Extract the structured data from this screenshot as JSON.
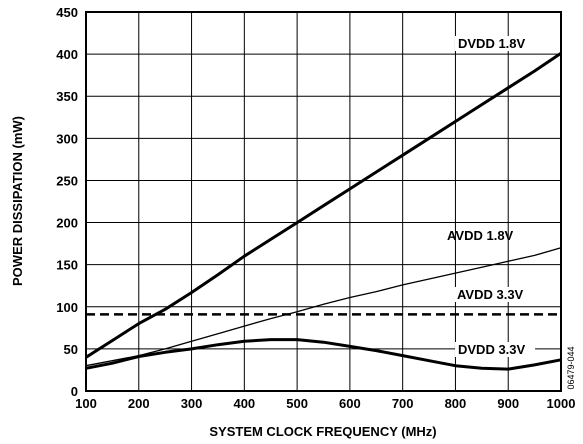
{
  "chart_data": {
    "type": "line",
    "title": "",
    "xlabel": "SYSTEM CLOCK FREQUENCY (MHz)",
    "ylabel": "POWER DISSIPATION (mW)",
    "xlim": [
      100,
      1000
    ],
    "ylim": [
      0,
      450
    ],
    "x_ticks": [
      100,
      200,
      300,
      400,
      500,
      600,
      700,
      800,
      900,
      1000
    ],
    "y_ticks": [
      0,
      50,
      100,
      150,
      200,
      250,
      300,
      350,
      400,
      450
    ],
    "grid": true,
    "legend": "inline labels at right end of lines",
    "figure_id": "06479-044",
    "series": [
      {
        "name": "DVDD 1.8V",
        "style": "thick-solid",
        "x": [
          100,
          150,
          200,
          250,
          300,
          350,
          400,
          450,
          500,
          550,
          600,
          650,
          700,
          750,
          800,
          850,
          900,
          950,
          1000
        ],
        "y": [
          40,
          60,
          80,
          97,
          117,
          138,
          160,
          180,
          200,
          220,
          240,
          260,
          280,
          300,
          320,
          340,
          360,
          380,
          401
        ]
      },
      {
        "name": "AVDD 1.8V",
        "style": "thin-solid",
        "x": [
          100,
          150,
          200,
          250,
          300,
          350,
          400,
          450,
          500,
          550,
          600,
          650,
          700,
          750,
          800,
          850,
          900,
          950,
          1000
        ],
        "y": [
          30,
          36,
          42,
          50,
          59,
          68,
          77,
          86,
          94,
          103,
          111,
          118,
          126,
          133,
          140,
          147,
          154,
          161,
          170
        ]
      },
      {
        "name": "AVDD 3.3V",
        "style": "thick-dashed",
        "x": [
          100,
          1000
        ],
        "y": [
          91,
          91
        ]
      },
      {
        "name": "DVDD 3.3V",
        "style": "thick-solid",
        "x": [
          100,
          150,
          200,
          250,
          300,
          350,
          400,
          450,
          500,
          550,
          600,
          650,
          700,
          750,
          800,
          850,
          900,
          950,
          1000
        ],
        "y": [
          27,
          33,
          41,
          46,
          50,
          55,
          59,
          61,
          61,
          58,
          53,
          48,
          42,
          36,
          30,
          27,
          26,
          31,
          37
        ]
      }
    ]
  }
}
